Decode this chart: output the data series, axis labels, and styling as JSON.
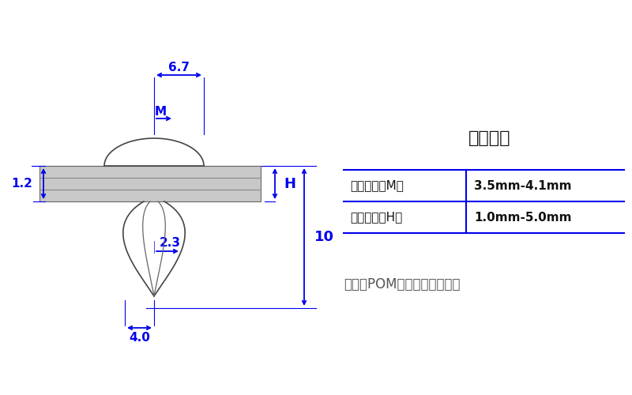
{
  "bg_color": "#ffffff",
  "blue": "#0000ee",
  "gray_fill": "#c8c8c8",
  "gray_line": "#888888",
  "black": "#111111",
  "dark_text": "#333333",
  "title": "施工参数",
  "row1_label": "适合孔径（M）",
  "row1_value": "3.5mm-4.1mm",
  "row2_label": "适合板厚（H）",
  "row2_value": "1.0mm-5.0mm",
  "material": "材质；POM塑料（俗称赛钢）",
  "dim_67": "6.7",
  "dim_M": "M",
  "dim_12": "1.2",
  "dim_23": "2.3",
  "dim_H": "H",
  "dim_10": "10",
  "dim_40": "4.0"
}
